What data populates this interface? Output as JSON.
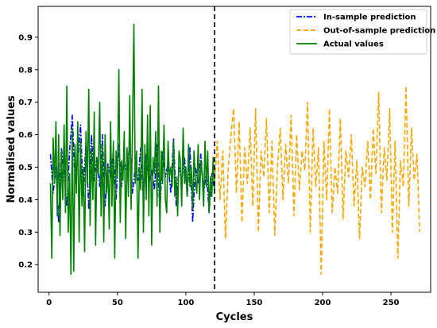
{
  "chart_data": {
    "type": "line",
    "xlabel": "Cycles",
    "ylabel": "Normalised values",
    "xlim": [
      -8,
      279
    ],
    "ylim": [
      0.115,
      0.995
    ],
    "x_ticks": [
      0,
      50,
      100,
      150,
      200,
      250
    ],
    "y_ticks": [
      0.2,
      0.3,
      0.4,
      0.5,
      0.6,
      0.7,
      0.8,
      0.9
    ],
    "grid": false,
    "legend_position": "top-right",
    "split_line_x": 121,
    "series": [
      {
        "name": "In-sample prediction",
        "color": "#0000ff",
        "style": "dashdot",
        "x": [
          1,
          3,
          5,
          7,
          9,
          11,
          13,
          15,
          17,
          19,
          21,
          23,
          25,
          27,
          29,
          31,
          33,
          35,
          37,
          39,
          41,
          43,
          45,
          47,
          49,
          51,
          53,
          55,
          57,
          59,
          61,
          63,
          65,
          67,
          69,
          71,
          73,
          75,
          77,
          79,
          81,
          83,
          85,
          87,
          89,
          91,
          93,
          95,
          97,
          99,
          101,
          103,
          105,
          107,
          109,
          111,
          113,
          115,
          117,
          119,
          121
        ],
        "values": [
          0.54,
          0.42,
          0.5,
          0.33,
          0.56,
          0.48,
          0.38,
          0.55,
          0.66,
          0.45,
          0.52,
          0.63,
          0.41,
          0.58,
          0.37,
          0.6,
          0.46,
          0.53,
          0.44,
          0.6,
          0.38,
          0.51,
          0.47,
          0.55,
          0.4,
          0.57,
          0.44,
          0.52,
          0.48,
          0.58,
          0.42,
          0.5,
          0.46,
          0.56,
          0.4,
          0.54,
          0.45,
          0.49,
          0.43,
          0.57,
          0.36,
          0.55,
          0.47,
          0.51,
          0.42,
          0.59,
          0.38,
          0.5,
          0.46,
          0.53,
          0.41,
          0.56,
          0.33,
          0.5,
          0.45,
          0.54,
          0.42,
          0.49,
          0.36,
          0.48,
          0.43
        ]
      },
      {
        "name": "Out-of-sample prediction",
        "color": "#ffa500",
        "style": "dashed",
        "x": [
          121,
          123,
          125,
          127,
          129,
          131,
          133,
          135,
          137,
          139,
          141,
          143,
          145,
          147,
          149,
          151,
          153,
          155,
          157,
          159,
          161,
          163,
          165,
          167,
          169,
          171,
          173,
          175,
          177,
          179,
          181,
          183,
          185,
          187,
          189,
          191,
          193,
          195,
          197,
          199,
          201,
          203,
          205,
          207,
          209,
          211,
          213,
          215,
          217,
          219,
          221,
          223,
          225,
          227,
          229,
          231,
          233,
          235,
          237,
          239,
          241,
          243,
          245,
          247,
          249,
          251,
          253,
          255,
          257,
          259,
          261,
          263,
          265,
          267,
          269,
          271
        ],
        "values": [
          0.44,
          0.58,
          0.4,
          0.55,
          0.28,
          0.5,
          0.6,
          0.68,
          0.42,
          0.64,
          0.33,
          0.56,
          0.45,
          0.62,
          0.38,
          0.68,
          0.3,
          0.55,
          0.47,
          0.65,
          0.36,
          0.58,
          0.29,
          0.5,
          0.62,
          0.4,
          0.57,
          0.45,
          0.66,
          0.35,
          0.6,
          0.43,
          0.55,
          0.49,
          0.7,
          0.3,
          0.62,
          0.44,
          0.56,
          0.17,
          0.58,
          0.4,
          0.68,
          0.36,
          0.5,
          0.42,
          0.65,
          0.34,
          0.55,
          0.47,
          0.6,
          0.38,
          0.52,
          0.28,
          0.5,
          0.44,
          0.58,
          0.4,
          0.62,
          0.48,
          0.73,
          0.36,
          0.56,
          0.46,
          0.68,
          0.3,
          0.58,
          0.22,
          0.52,
          0.44,
          0.75,
          0.38,
          0.62,
          0.46,
          0.54,
          0.3
        ]
      },
      {
        "name": "Actual values",
        "color": "#008000",
        "style": "solid",
        "x": [
          1,
          2,
          3,
          4,
          5,
          6,
          7,
          8,
          9,
          10,
          11,
          12,
          13,
          14,
          15,
          16,
          17,
          18,
          19,
          20,
          21,
          22,
          23,
          24,
          25,
          26,
          27,
          28,
          29,
          30,
          31,
          32,
          33,
          34,
          35,
          36,
          37,
          38,
          39,
          40,
          41,
          42,
          43,
          44,
          45,
          46,
          47,
          48,
          49,
          50,
          51,
          52,
          53,
          54,
          55,
          56,
          57,
          58,
          59,
          60,
          61,
          62,
          63,
          64,
          65,
          66,
          67,
          68,
          69,
          70,
          71,
          72,
          73,
          74,
          75,
          76,
          77,
          78,
          79,
          80,
          81,
          82,
          83,
          84,
          85,
          86,
          87,
          88,
          89,
          90,
          91,
          92,
          93,
          94,
          95,
          96,
          97,
          98,
          99,
          100,
          101,
          102,
          103,
          104,
          105,
          106,
          107,
          108,
          109,
          110,
          111,
          112,
          113,
          114,
          115,
          116,
          117,
          118,
          119,
          120,
          121
        ],
        "values": [
          0.45,
          0.22,
          0.59,
          0.45,
          0.64,
          0.35,
          0.6,
          0.29,
          0.55,
          0.4,
          0.63,
          0.36,
          0.75,
          0.3,
          0.48,
          0.17,
          0.62,
          0.18,
          0.57,
          0.42,
          0.64,
          0.27,
          0.58,
          0.38,
          0.5,
          0.24,
          0.61,
          0.45,
          0.74,
          0.32,
          0.55,
          0.4,
          0.67,
          0.26,
          0.53,
          0.48,
          0.7,
          0.35,
          0.57,
          0.27,
          0.6,
          0.42,
          0.5,
          0.31,
          0.64,
          0.38,
          0.58,
          0.22,
          0.55,
          0.47,
          0.8,
          0.33,
          0.52,
          0.46,
          0.61,
          0.28,
          0.56,
          0.41,
          0.72,
          0.37,
          0.62,
          0.94,
          0.45,
          0.55,
          0.22,
          0.5,
          0.43,
          0.74,
          0.3,
          0.57,
          0.4,
          0.66,
          0.35,
          0.69,
          0.26,
          0.53,
          0.48,
          0.61,
          0.38,
          0.75,
          0.3,
          0.55,
          0.45,
          0.63,
          0.4,
          0.36,
          0.58,
          0.47,
          0.5,
          0.44,
          0.58,
          0.41,
          0.47,
          0.35,
          0.55,
          0.52,
          0.38,
          0.62,
          0.45,
          0.5,
          0.41,
          0.57,
          0.44,
          0.5,
          0.37,
          0.55,
          0.46,
          0.42,
          0.57,
          0.4,
          0.52,
          0.47,
          0.38,
          0.58,
          0.44,
          0.55,
          0.36,
          0.47,
          0.41,
          0.53,
          0.43
        ]
      }
    ]
  }
}
